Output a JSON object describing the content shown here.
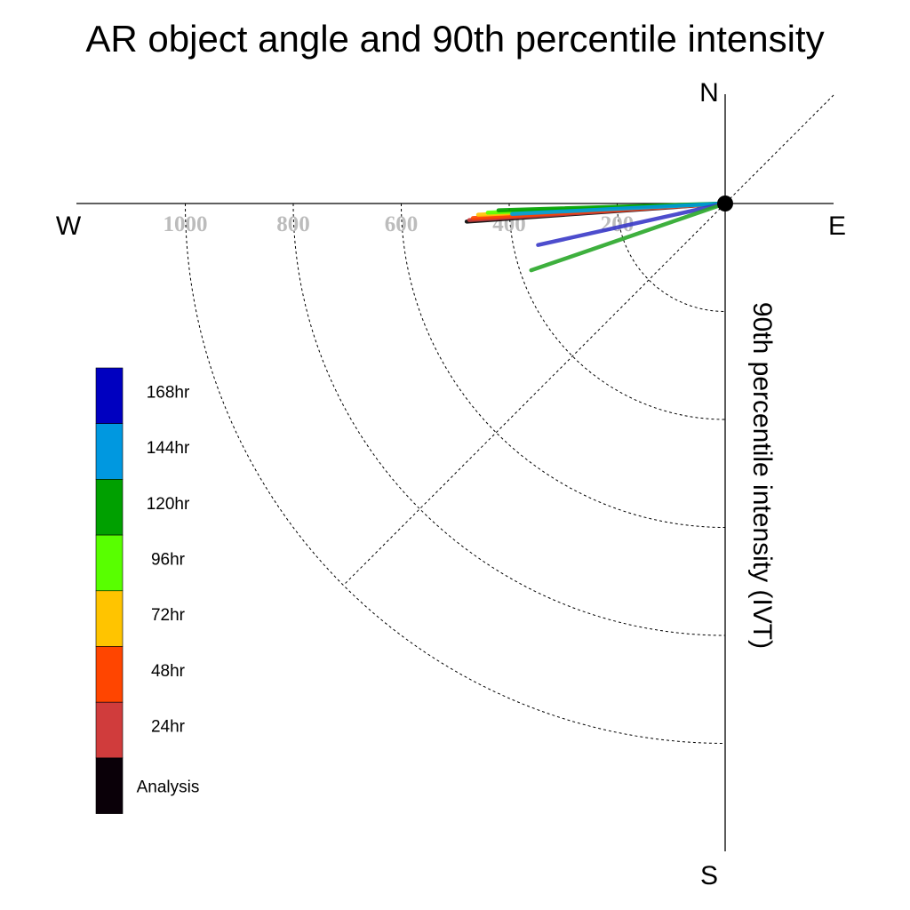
{
  "chart_data": {
    "type": "polar-line",
    "title": "AR object angle and 90th percentile intensity",
    "ylabel": "90th percentile intensity (IVT)",
    "directions": {
      "north": "N",
      "south": "S",
      "east": "E",
      "west": "W"
    },
    "radial_ticks": [
      200,
      400,
      600,
      800,
      1000
    ],
    "radial_tick_labels": [
      "200",
      "400",
      "600",
      "800",
      "1000"
    ],
    "radial_max": 1200,
    "grid": true,
    "diagonal_guide": "NE-SW",
    "legend": {
      "placement": "bottom-left",
      "entries": [
        {
          "label": "168hr",
          "color": "#0000c0"
        },
        {
          "label": "144hr",
          "color": "#0098e0"
        },
        {
          "label": "120hr",
          "color": "#00a000"
        },
        {
          "label": "96hr",
          "color": "#58ff00"
        },
        {
          "label": "72hr",
          "color": "#ffc400"
        },
        {
          "label": "48hr",
          "color": "#ff4500"
        },
        {
          "label": "24hr",
          "color": "#d03c3c"
        },
        {
          "label": "Analysis",
          "color": "#0a0008"
        }
      ]
    },
    "series": [
      {
        "lead": "Analysis",
        "color": "#000000",
        "angle_deg_below_west": 4.0,
        "intensity": 480
      },
      {
        "lead": "24hr",
        "color": "#d03c3c",
        "angle_deg_below_west": 3.7,
        "intensity": 475
      },
      {
        "lead": "48hr",
        "color": "#ff4500",
        "angle_deg_below_west": 3.3,
        "intensity": 468
      },
      {
        "lead": "72hr",
        "color": "#ffc400",
        "angle_deg_below_west": 2.6,
        "intensity": 458
      },
      {
        "lead": "96hr",
        "color": "#58ff00",
        "angle_deg_below_west": 2.2,
        "intensity": 440
      },
      {
        "lead": "120hr",
        "color": "#00a000",
        "angle_deg_below_west": 1.7,
        "intensity": 420
      },
      {
        "lead": "144hr",
        "color": "#0098e0",
        "angle_deg_below_west": 2.8,
        "intensity": 395
      },
      {
        "lead": "168hr",
        "color": "#3a3ac8",
        "angle_deg_below_west": 12.5,
        "intensity": 355
      },
      {
        "lead": "120hr",
        "color": "#2aa82a",
        "angle_deg_below_west": 19.0,
        "intensity": 380
      }
    ]
  }
}
